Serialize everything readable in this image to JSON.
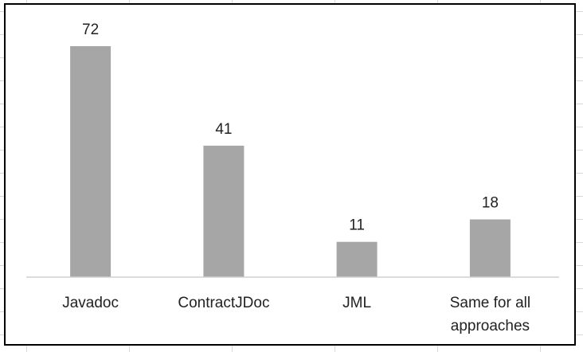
{
  "chart_data": {
    "type": "bar",
    "categories": [
      "Javadoc",
      "ContractJDoc",
      "JML",
      "Same for all approaches"
    ],
    "category_lines": [
      [
        "Javadoc"
      ],
      [
        "ContractJDoc"
      ],
      [
        "JML"
      ],
      [
        "Same for all",
        "approaches"
      ]
    ],
    "values": [
      72,
      41,
      11,
      18
    ],
    "data_labels": [
      "72",
      "41",
      "11",
      "18"
    ],
    "title": "",
    "xlabel": "",
    "ylabel": "",
    "ylim": [
      0,
      72
    ],
    "grid": false,
    "legend": "none",
    "bar_color": "#a6a6a6"
  }
}
